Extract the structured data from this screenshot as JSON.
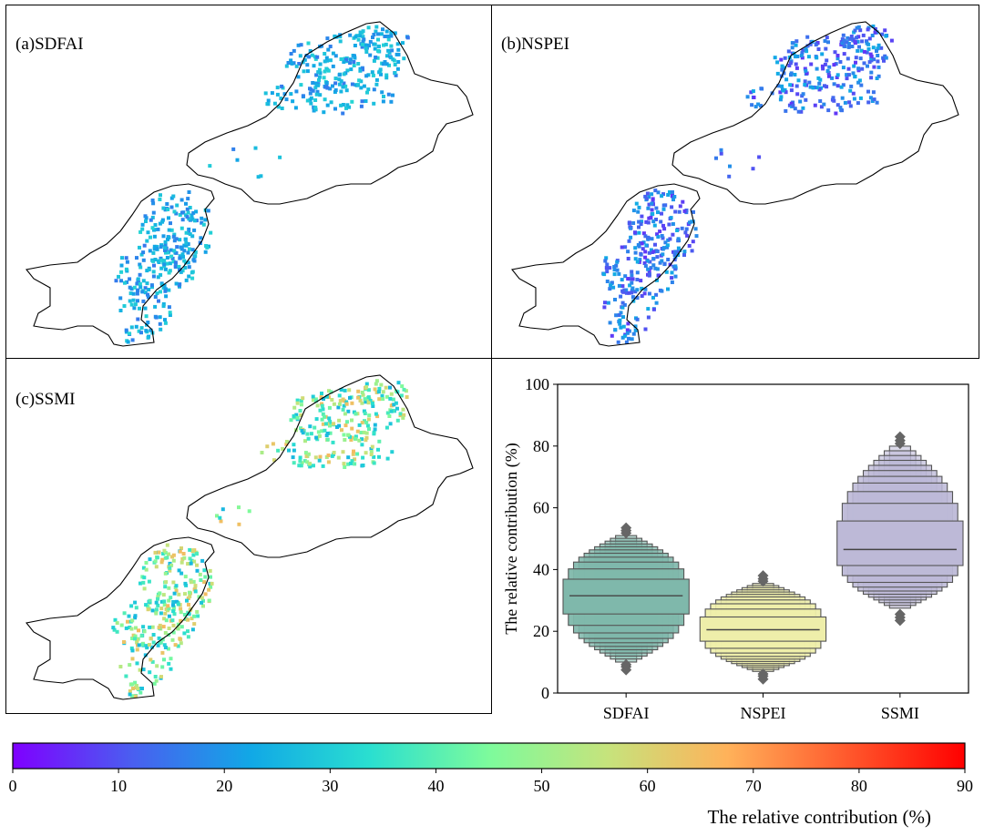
{
  "panels": [
    {
      "label": "(a)SDFAI",
      "scheme": "sdfai"
    },
    {
      "label": "(b)NSPEI",
      "scheme": "nspei"
    },
    {
      "label": "(c)SSMI",
      "scheme": "ssmi"
    }
  ],
  "colorbar": {
    "label": "The relative contribution (%)",
    "min": 0,
    "max": 90,
    "ticks": [
      "0",
      "10",
      "20",
      "30",
      "40",
      "50",
      "60",
      "70",
      "80",
      "90"
    ],
    "colors": [
      "#7f00ff",
      "#4a5ef0",
      "#11a8e6",
      "#2adfd0",
      "#7dfb9c",
      "#c6e37c",
      "#ffb25a",
      "#ff5a2d",
      "#ff0000"
    ]
  },
  "chart_data": {
    "type": "boxen",
    "title": "",
    "xlabel": "",
    "ylabel": "The relative contribution (%)",
    "ylim": [
      0,
      100
    ],
    "yticks": [
      "0",
      "20",
      "40",
      "60",
      "80",
      "100"
    ],
    "categories": [
      "SDFAI",
      "NSPEI",
      "SSMI"
    ],
    "series": [
      {
        "name": "SDFAI",
        "color": "#7fb8ab",
        "median": 31.5,
        "min": 10,
        "max": 51,
        "outliers_low": [
          7.5,
          8.5,
          9.2
        ],
        "outliers_high": [
          51.8,
          52.6,
          53.5
        ]
      },
      {
        "name": "NSPEI",
        "color": "#eeeeaa",
        "median": 20.5,
        "min": 7,
        "max": 35.5,
        "outliers_low": [
          4.5,
          5.5,
          6.2
        ],
        "outliers_high": [
          36.2,
          37.0,
          38.0
        ]
      },
      {
        "name": "SSMI",
        "color": "#bdb9d7",
        "median": 46.5,
        "min": 27.5,
        "max": 80,
        "outliers_low": [
          23.5,
          24.5,
          25.5
        ],
        "outliers_high": [
          80.8,
          81.8,
          83.0
        ]
      }
    ]
  }
}
